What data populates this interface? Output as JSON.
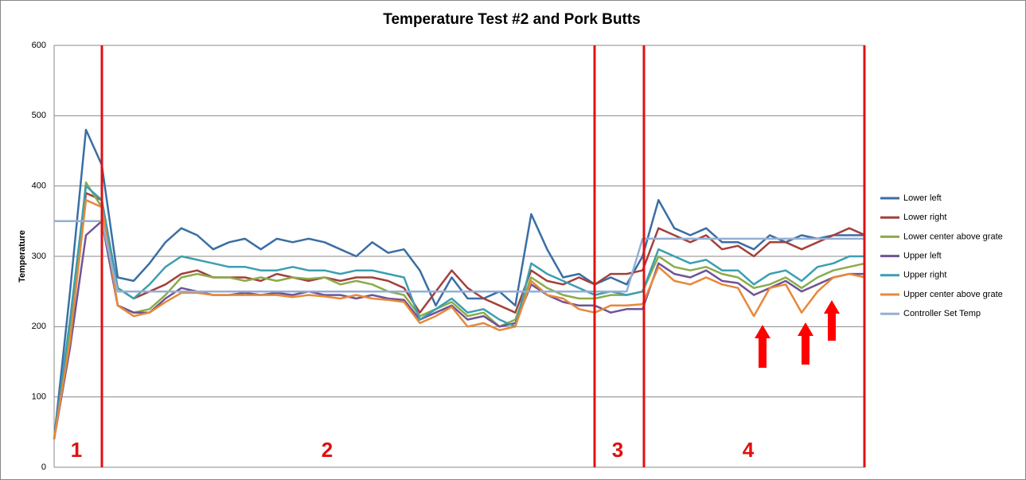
{
  "chart_data": {
    "type": "line",
    "title": "Temperature Test #2 and Pork Butts",
    "y_label": "Temperature",
    "categories": [
      null,
      null,
      null,
      null,
      null,
      null,
      null,
      null,
      null,
      null,
      null,
      null,
      null,
      null,
      null,
      null,
      null,
      null,
      null,
      null,
      null,
      null,
      null,
      null,
      null,
      null,
      null,
      null,
      null,
      null,
      null,
      null,
      null,
      null,
      null,
      null,
      null,
      null,
      null,
      null,
      null,
      null,
      null,
      null,
      null,
      null,
      null,
      null,
      null,
      null,
      null,
      null
    ],
    "ylim": [
      0,
      600
    ],
    "yticks": [
      0,
      100,
      200,
      300,
      400,
      500,
      600
    ],
    "grid": true,
    "legend": "right",
    "annotations": [
      "1",
      "2",
      "3",
      "4"
    ],
    "series": [
      {
        "name": "Lower left",
        "color": "#3a6ea5",
        "values": [
          40,
          250,
          480,
          430,
          270,
          265,
          290,
          320,
          340,
          330,
          310,
          320,
          325,
          310,
          325,
          320,
          325,
          320,
          310,
          300,
          320,
          305,
          310,
          280,
          230,
          270,
          240,
          240,
          250,
          230,
          360,
          310,
          270,
          275,
          260,
          270,
          260,
          300,
          380,
          340,
          330,
          340,
          320,
          320,
          310,
          330,
          320,
          330,
          325,
          330,
          330,
          330
        ]
      },
      {
        "name": "Lower right",
        "color": "#a3403d",
        "values": [
          40,
          200,
          390,
          380,
          255,
          240,
          250,
          260,
          275,
          280,
          270,
          270,
          270,
          265,
          275,
          270,
          265,
          270,
          265,
          270,
          270,
          265,
          255,
          220,
          250,
          280,
          255,
          240,
          230,
          220,
          280,
          265,
          260,
          270,
          260,
          275,
          275,
          280,
          340,
          330,
          320,
          330,
          310,
          315,
          300,
          320,
          320,
          310,
          320,
          330,
          340,
          330
        ]
      },
      {
        "name": "Lower center above grate",
        "color": "#8aac4a",
        "values": [
          40,
          190,
          405,
          370,
          230,
          220,
          225,
          245,
          270,
          275,
          270,
          270,
          265,
          270,
          265,
          270,
          268,
          270,
          260,
          265,
          260,
          250,
          245,
          215,
          225,
          235,
          215,
          220,
          200,
          210,
          270,
          255,
          245,
          240,
          240,
          245,
          245,
          250,
          300,
          285,
          280,
          285,
          275,
          270,
          255,
          260,
          270,
          255,
          270,
          280,
          285,
          290
        ]
      },
      {
        "name": "Upper left",
        "color": "#6f5495",
        "values": [
          40,
          170,
          330,
          350,
          230,
          220,
          220,
          240,
          255,
          250,
          245,
          245,
          248,
          245,
          248,
          245,
          250,
          245,
          245,
          240,
          245,
          240,
          238,
          210,
          220,
          230,
          210,
          215,
          200,
          205,
          260,
          245,
          235,
          230,
          230,
          220,
          225,
          225,
          290,
          275,
          270,
          280,
          265,
          262,
          245,
          255,
          265,
          250,
          260,
          270,
          275,
          275
        ]
      },
      {
        "name": "Upper right",
        "color": "#3c9fb0",
        "values": [
          40,
          210,
          400,
          380,
          255,
          240,
          260,
          285,
          300,
          295,
          290,
          285,
          285,
          280,
          280,
          285,
          280,
          280,
          275,
          280,
          280,
          275,
          270,
          210,
          225,
          240,
          220,
          225,
          210,
          200,
          290,
          275,
          265,
          255,
          245,
          250,
          245,
          250,
          310,
          300,
          290,
          295,
          280,
          280,
          260,
          275,
          280,
          265,
          285,
          290,
          300,
          300
        ]
      },
      {
        "name": "Upper center above grate",
        "color": "#e8883a",
        "values": [
          40,
          180,
          380,
          370,
          230,
          215,
          220,
          235,
          248,
          248,
          245,
          245,
          245,
          245,
          245,
          242,
          245,
          243,
          240,
          245,
          240,
          238,
          235,
          205,
          215,
          228,
          200,
          205,
          195,
          200,
          265,
          245,
          240,
          225,
          220,
          230,
          230,
          232,
          285,
          265,
          260,
          270,
          260,
          255,
          215,
          255,
          260,
          220,
          250,
          270,
          275,
          270
        ]
      },
      {
        "name": "Controller Set Temp",
        "color": "#94afd4",
        "values": [
          350,
          350,
          350,
          350,
          250,
          250,
          250,
          250,
          250,
          250,
          250,
          250,
          250,
          250,
          250,
          250,
          250,
          250,
          250,
          250,
          250,
          250,
          250,
          250,
          250,
          250,
          250,
          250,
          250,
          250,
          250,
          250,
          250,
          250,
          250,
          250,
          250,
          325,
          325,
          325,
          325,
          325,
          325,
          325,
          325,
          325,
          325,
          325,
          325,
          325,
          325,
          325
        ]
      }
    ]
  }
}
